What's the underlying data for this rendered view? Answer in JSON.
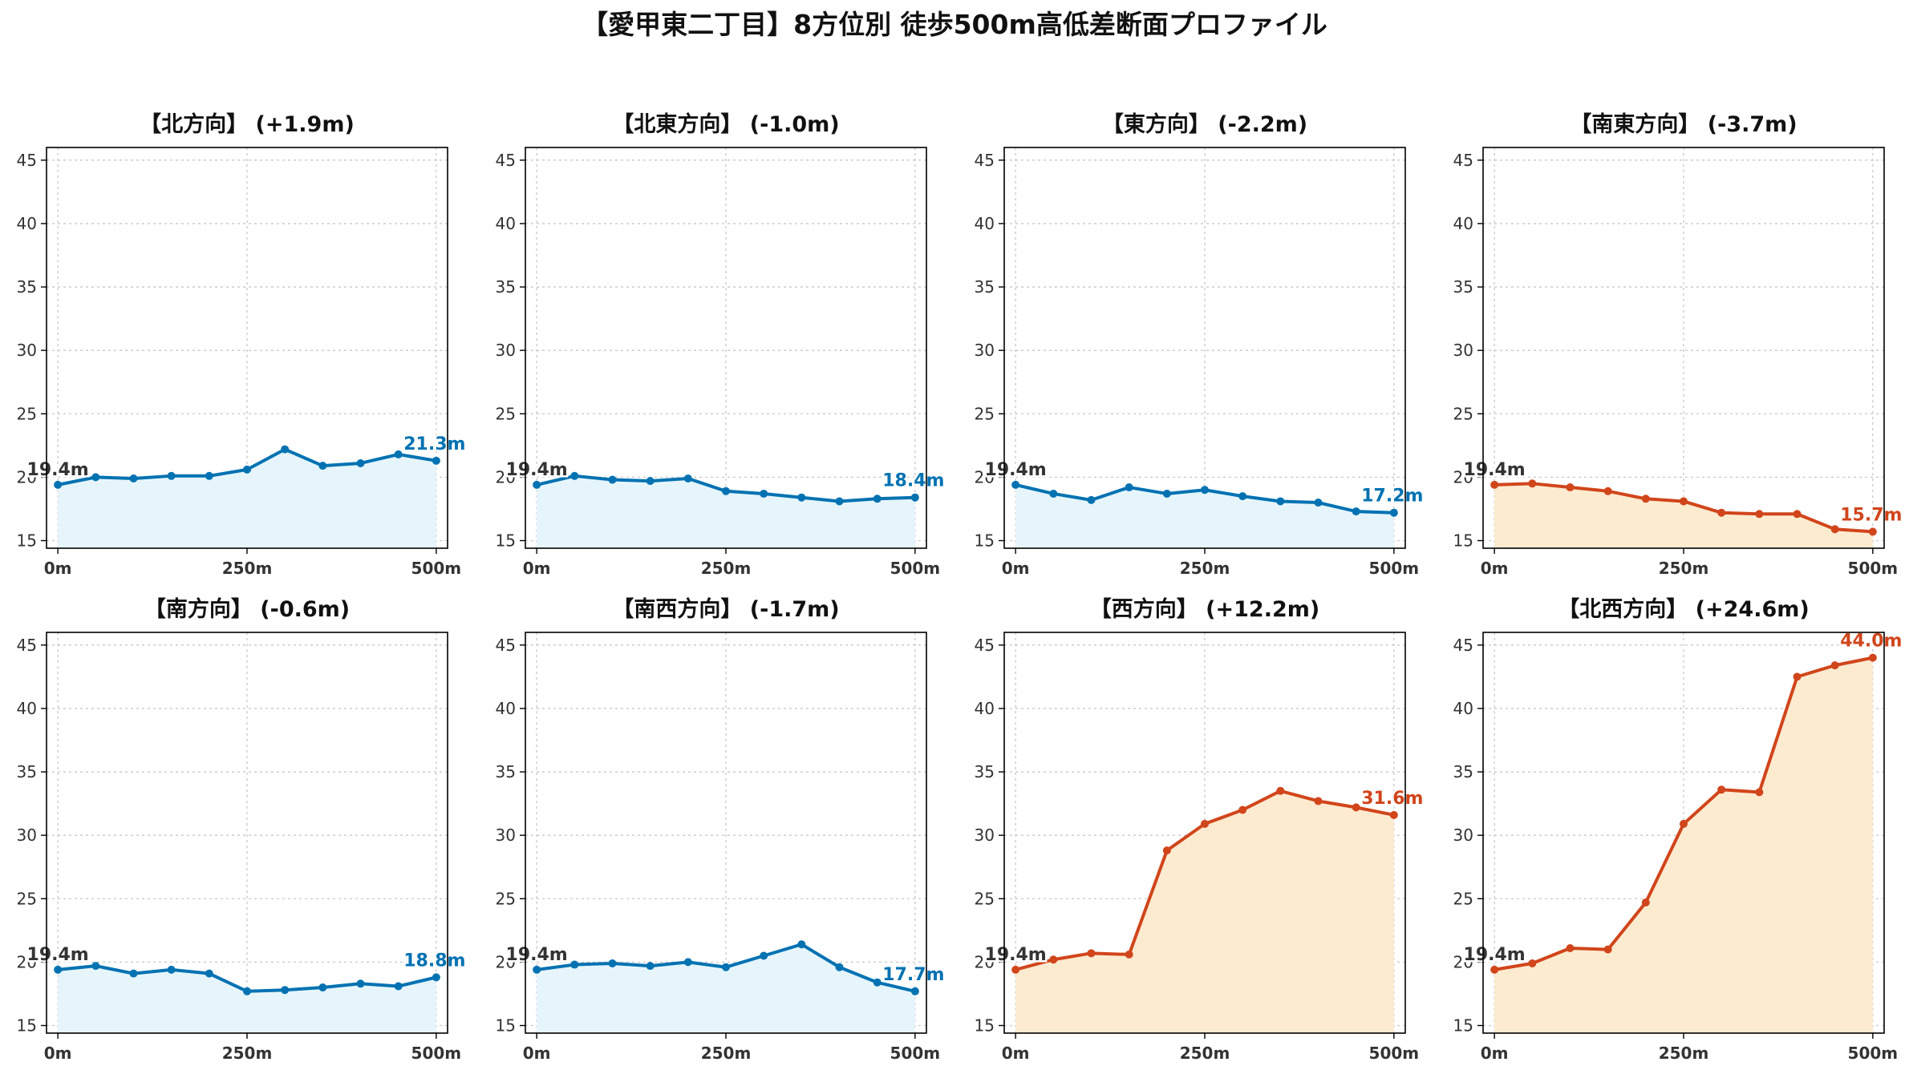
{
  "figure_title": "【愛甲東二丁目】8方位別 徒歩500m高低差断面プロファイル",
  "colors": {
    "flat_line": "#0072b2",
    "flat_fill": "#e6f5fb",
    "slope_line": "#d1451b",
    "slope_fill": "#fdebd0",
    "start_label": "#333333"
  },
  "chart_data": [
    {
      "type": "line",
      "title": "【北方向】 (+1.9m)",
      "color_group": "flat",
      "x": [
        0,
        50,
        100,
        150,
        200,
        250,
        300,
        350,
        400,
        450,
        500
      ],
      "values": [
        19.4,
        20.0,
        19.9,
        20.1,
        20.1,
        20.6,
        22.2,
        20.9,
        21.1,
        21.8,
        21.3
      ],
      "start_label": "19.4m",
      "end_label": "21.3m",
      "xticks": [
        0,
        250,
        500
      ],
      "xtick_labels": [
        "0m",
        "250m",
        "500m"
      ],
      "yticks": [
        15,
        20,
        25,
        30,
        35,
        40,
        45
      ],
      "ytick_labels": [
        "15",
        "20",
        "25",
        "30",
        "35",
        "40",
        "45"
      ],
      "xlim": [
        -15,
        515
      ],
      "ylim": [
        14.4,
        46
      ],
      "grid": true
    },
    {
      "type": "line",
      "title": "【北東方向】 (-1.0m)",
      "color_group": "flat",
      "x": [
        0,
        50,
        100,
        150,
        200,
        250,
        300,
        350,
        400,
        450,
        500
      ],
      "values": [
        19.4,
        20.1,
        19.8,
        19.7,
        19.9,
        18.9,
        18.7,
        18.4,
        18.1,
        18.3,
        18.4
      ],
      "start_label": "19.4m",
      "end_label": "18.4m",
      "xticks": [
        0,
        250,
        500
      ],
      "xtick_labels": [
        "0m",
        "250m",
        "500m"
      ],
      "yticks": [
        15,
        20,
        25,
        30,
        35,
        40,
        45
      ],
      "ytick_labels": [
        "15",
        "20",
        "25",
        "30",
        "35",
        "40",
        "45"
      ],
      "xlim": [
        -15,
        515
      ],
      "ylim": [
        14.4,
        46
      ],
      "grid": true
    },
    {
      "type": "line",
      "title": "【東方向】 (-2.2m)",
      "color_group": "flat",
      "x": [
        0,
        50,
        100,
        150,
        200,
        250,
        300,
        350,
        400,
        450,
        500
      ],
      "values": [
        19.4,
        18.7,
        18.2,
        19.2,
        18.7,
        19.0,
        18.5,
        18.1,
        18.0,
        17.3,
        17.2
      ],
      "start_label": "19.4m",
      "end_label": "17.2m",
      "xticks": [
        0,
        250,
        500
      ],
      "xtick_labels": [
        "0m",
        "250m",
        "500m"
      ],
      "yticks": [
        15,
        20,
        25,
        30,
        35,
        40,
        45
      ],
      "ytick_labels": [
        "15",
        "20",
        "25",
        "30",
        "35",
        "40",
        "45"
      ],
      "xlim": [
        -15,
        515
      ],
      "ylim": [
        14.4,
        46
      ],
      "grid": true
    },
    {
      "type": "line",
      "title": "【南東方向】 (-3.7m)",
      "color_group": "slope",
      "x": [
        0,
        50,
        100,
        150,
        200,
        250,
        300,
        350,
        400,
        450,
        500
      ],
      "values": [
        19.4,
        19.5,
        19.2,
        18.9,
        18.3,
        18.1,
        17.2,
        17.1,
        17.1,
        15.9,
        15.7
      ],
      "start_label": "19.4m",
      "end_label": "15.7m",
      "xticks": [
        0,
        250,
        500
      ],
      "xtick_labels": [
        "0m",
        "250m",
        "500m"
      ],
      "yticks": [
        15,
        20,
        25,
        30,
        35,
        40,
        45
      ],
      "ytick_labels": [
        "15",
        "20",
        "25",
        "30",
        "35",
        "40",
        "45"
      ],
      "xlim": [
        -15,
        515
      ],
      "ylim": [
        14.4,
        46
      ],
      "grid": true
    },
    {
      "type": "line",
      "title": "【南方向】 (-0.6m)",
      "color_group": "flat",
      "x": [
        0,
        50,
        100,
        150,
        200,
        250,
        300,
        350,
        400,
        450,
        500
      ],
      "values": [
        19.4,
        19.7,
        19.1,
        19.4,
        19.1,
        17.7,
        17.8,
        18.0,
        18.3,
        18.1,
        18.8
      ],
      "start_label": "19.4m",
      "end_label": "18.8m",
      "xticks": [
        0,
        250,
        500
      ],
      "xtick_labels": [
        "0m",
        "250m",
        "500m"
      ],
      "yticks": [
        15,
        20,
        25,
        30,
        35,
        40,
        45
      ],
      "ytick_labels": [
        "15",
        "20",
        "25",
        "30",
        "35",
        "40",
        "45"
      ],
      "xlim": [
        -15,
        515
      ],
      "ylim": [
        14.4,
        46
      ],
      "grid": true
    },
    {
      "type": "line",
      "title": "【南西方向】 (-1.7m)",
      "color_group": "flat",
      "x": [
        0,
        50,
        100,
        150,
        200,
        250,
        300,
        350,
        400,
        450,
        500
      ],
      "values": [
        19.4,
        19.8,
        19.9,
        19.7,
        20.0,
        19.6,
        20.5,
        21.4,
        19.6,
        18.4,
        17.7
      ],
      "start_label": "19.4m",
      "end_label": "17.7m",
      "xticks": [
        0,
        250,
        500
      ],
      "xtick_labels": [
        "0m",
        "250m",
        "500m"
      ],
      "yticks": [
        15,
        20,
        25,
        30,
        35,
        40,
        45
      ],
      "ytick_labels": [
        "15",
        "20",
        "25",
        "30",
        "35",
        "40",
        "45"
      ],
      "xlim": [
        -15,
        515
      ],
      "ylim": [
        14.4,
        46
      ],
      "grid": true
    },
    {
      "type": "line",
      "title": "【西方向】 (+12.2m)",
      "color_group": "slope",
      "x": [
        0,
        50,
        100,
        150,
        200,
        250,
        300,
        350,
        400,
        450,
        500
      ],
      "values": [
        19.4,
        20.2,
        20.7,
        20.6,
        28.8,
        30.9,
        32.0,
        33.5,
        32.7,
        32.2,
        31.6
      ],
      "start_label": "19.4m",
      "end_label": "31.6m",
      "xticks": [
        0,
        250,
        500
      ],
      "xtick_labels": [
        "0m",
        "250m",
        "500m"
      ],
      "yticks": [
        15,
        20,
        25,
        30,
        35,
        40,
        45
      ],
      "ytick_labels": [
        "15",
        "20",
        "25",
        "30",
        "35",
        "40",
        "45"
      ],
      "xlim": [
        -15,
        515
      ],
      "ylim": [
        14.4,
        46
      ],
      "grid": true
    },
    {
      "type": "line",
      "title": "【北西方向】 (+24.6m)",
      "color_group": "slope",
      "x": [
        0,
        50,
        100,
        150,
        200,
        250,
        300,
        350,
        400,
        450,
        500
      ],
      "values": [
        19.4,
        19.9,
        21.1,
        21.0,
        24.7,
        30.9,
        33.6,
        33.4,
        42.5,
        43.4,
        44.0
      ],
      "start_label": "19.4m",
      "end_label": "44.0m",
      "xticks": [
        0,
        250,
        500
      ],
      "xtick_labels": [
        "0m",
        "250m",
        "500m"
      ],
      "yticks": [
        15,
        20,
        25,
        30,
        35,
        40,
        45
      ],
      "ytick_labels": [
        "15",
        "20",
        "25",
        "30",
        "35",
        "40",
        "45"
      ],
      "xlim": [
        -15,
        515
      ],
      "ylim": [
        14.4,
        46
      ],
      "grid": true
    }
  ]
}
